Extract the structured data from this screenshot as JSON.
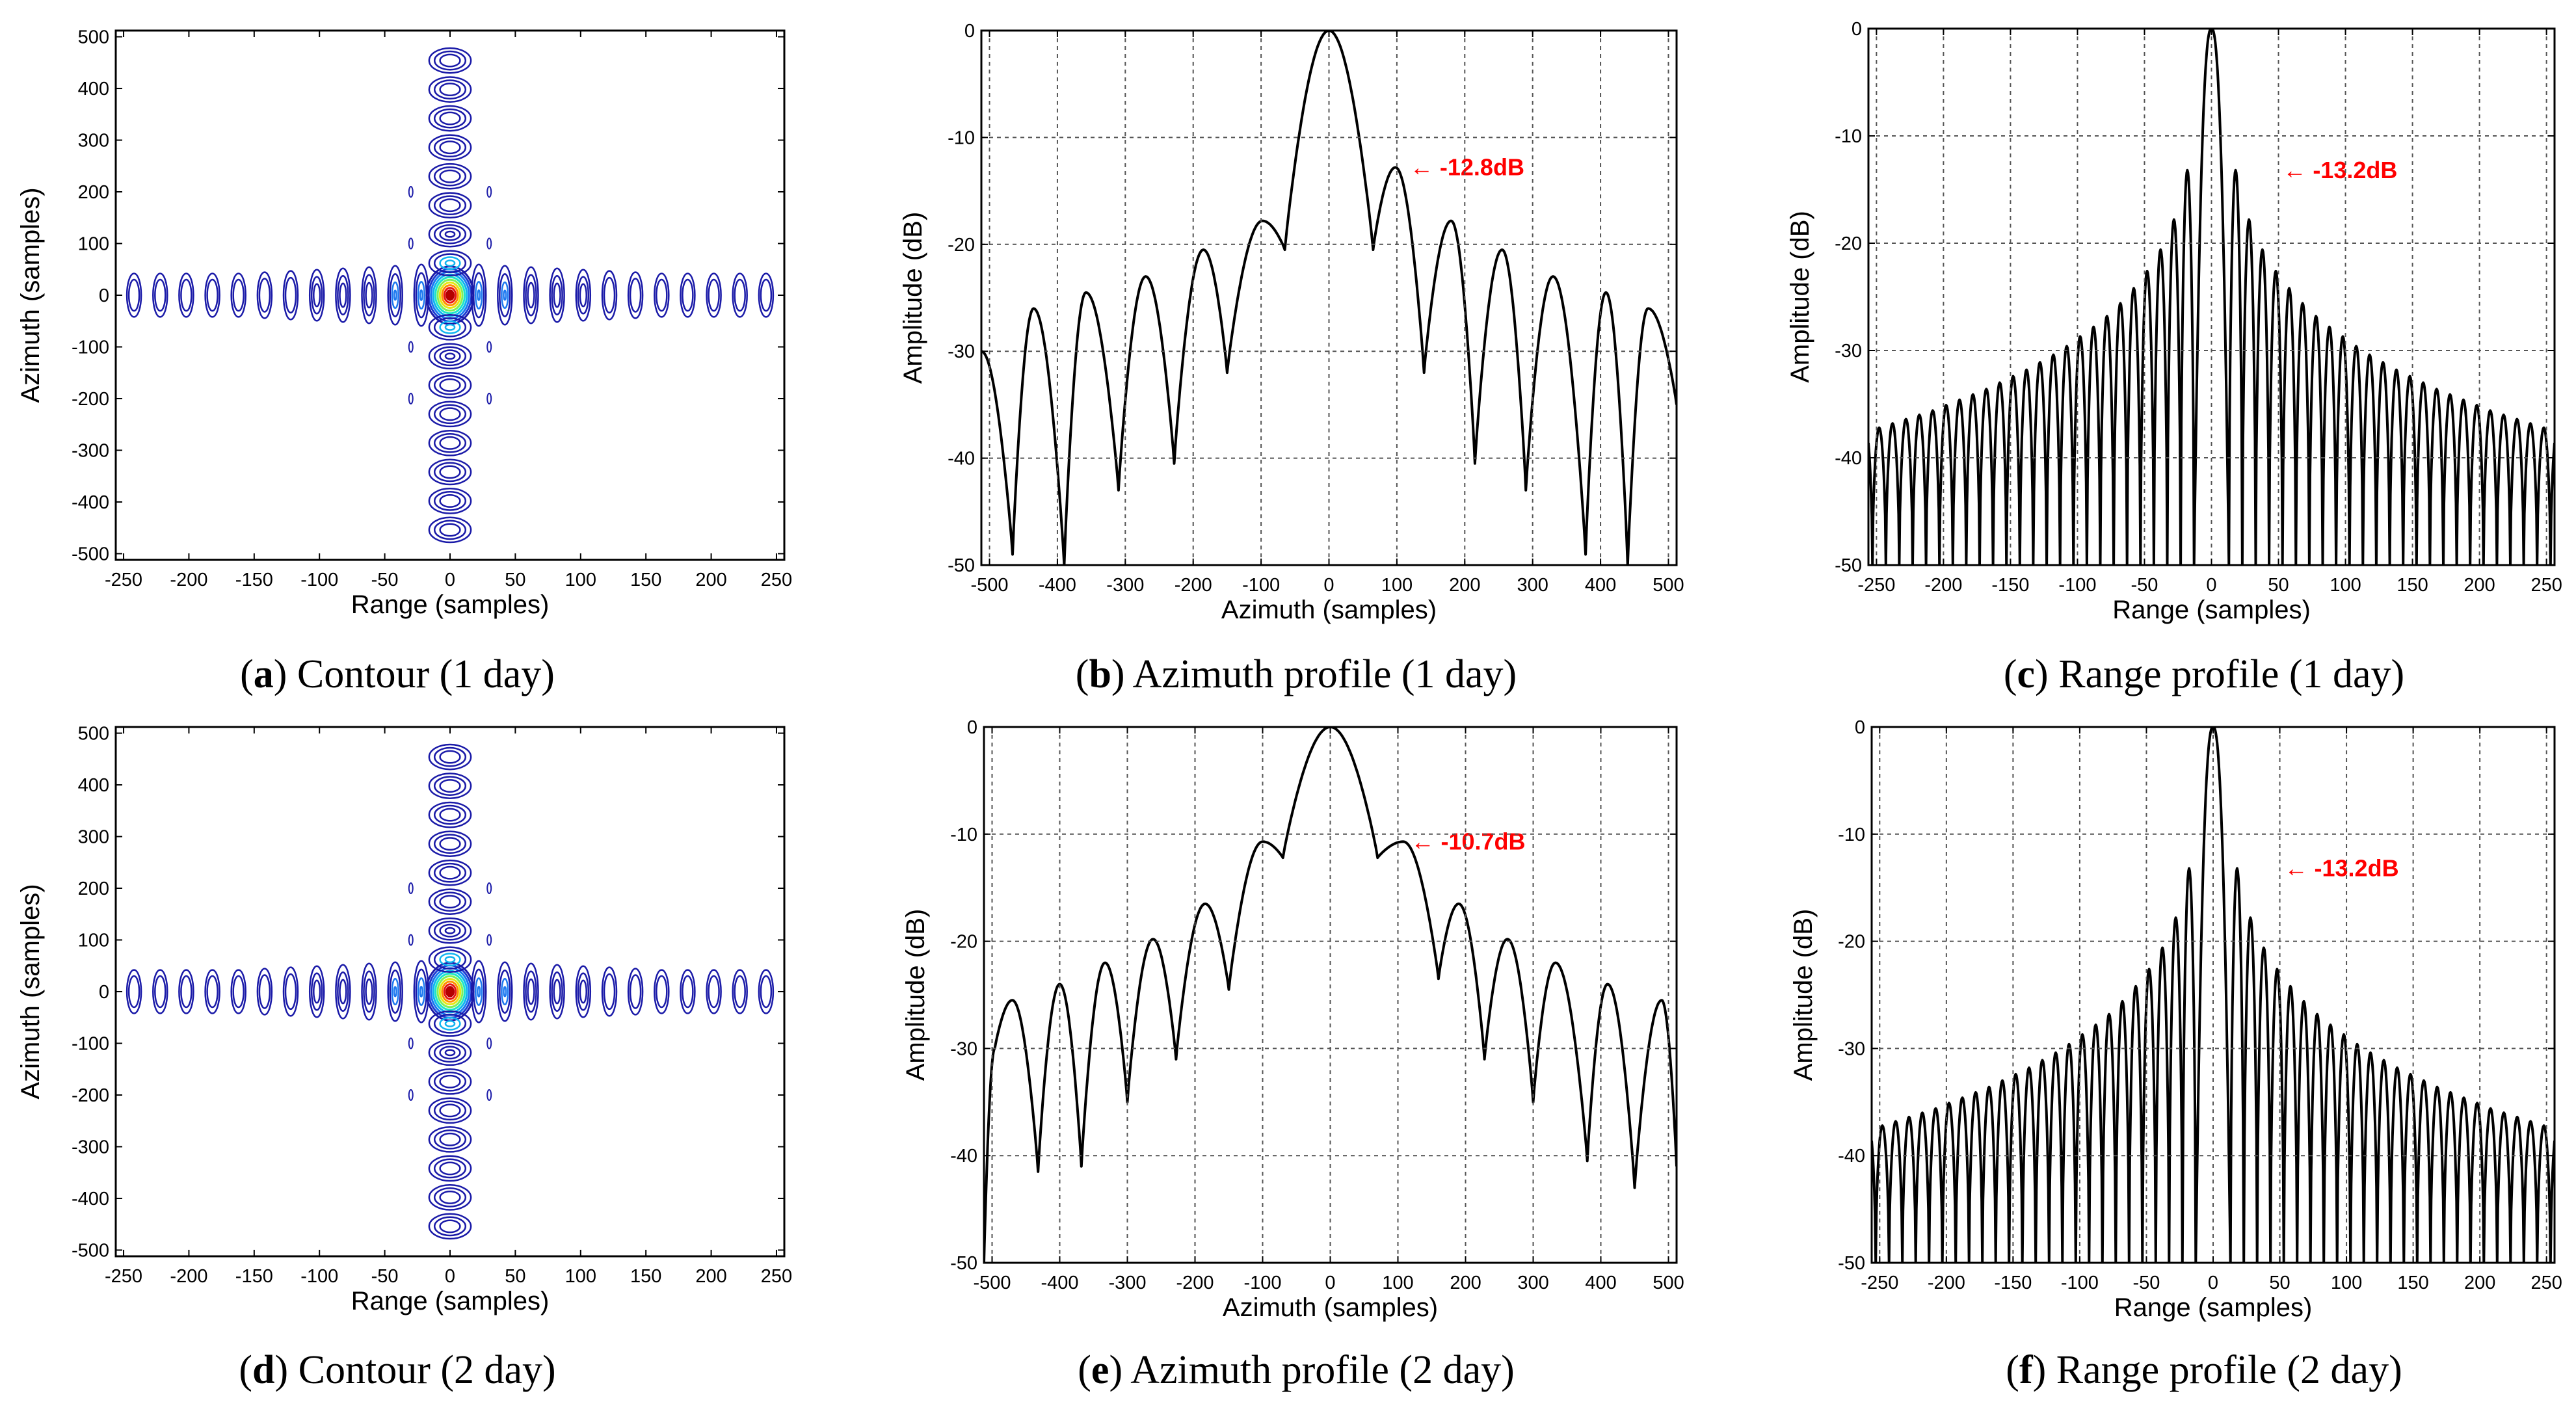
{
  "colors": {
    "profile_line": "#000000",
    "grid": "#555555",
    "contour_outer": "#1a1aa8",
    "contour_levels": [
      "#1a1aa8",
      "#1e3cd2",
      "#1c78f0",
      "#10b4f0",
      "#1ee6c8",
      "#7ef05a",
      "#e6e614",
      "#ff8c00",
      "#e61414",
      "#b40000"
    ],
    "annotation": "#ff0000"
  },
  "chart_data": [
    {
      "id": "a",
      "type": "contour",
      "caption_letter": "a",
      "caption_text": " Contour (1 day)",
      "xlabel": "Range (samples)",
      "ylabel": "Azimuth  (samples)",
      "xlim": [
        -256,
        256
      ],
      "ylim": [
        -512,
        512
      ],
      "xticks": [
        -250,
        -200,
        -150,
        -100,
        -50,
        0,
        50,
        100,
        150,
        200,
        250
      ],
      "yticks": [
        500,
        400,
        300,
        200,
        100,
        0,
        -100,
        -200,
        -300,
        -400,
        -500
      ],
      "grid": false,
      "center": [
        0,
        0
      ],
      "range_sidelobe_spacing": 20,
      "azimuth_sidelobe_spacing": 56
    },
    {
      "id": "b",
      "type": "line",
      "caption_letter": "b",
      "caption_text": " Azimuth profile (1 day)",
      "xlabel": "Azimuth (samples)",
      "ylabel": "Amplitude (dB)",
      "xlim": [
        -512,
        512
      ],
      "ylim": [
        -50,
        0
      ],
      "xticks": [
        -500,
        -400,
        -300,
        -200,
        -100,
        0,
        100,
        200,
        300,
        400,
        500
      ],
      "yticks": [
        0,
        -10,
        -20,
        -30,
        -40,
        -50
      ],
      "grid": true,
      "annotation": {
        "text": "← -12.8dB",
        "x": 100,
        "y": -12.8
      },
      "lobes": [
        {
          "x": -512,
          "y": -30
        },
        {
          "x": -466,
          "y": -49
        },
        {
          "x": -435,
          "y": -26
        },
        {
          "x": -390,
          "y": -50
        },
        {
          "x": -358,
          "y": -24.5
        },
        {
          "x": -310,
          "y": -43
        },
        {
          "x": -270,
          "y": -23
        },
        {
          "x": -228,
          "y": -40.5
        },
        {
          "x": -185,
          "y": -20.5
        },
        {
          "x": -150,
          "y": -32
        },
        {
          "x": -98,
          "y": -17.8
        },
        {
          "x": -65,
          "y": -20.5
        },
        {
          "x": 0,
          "y": 0
        },
        {
          "x": 65,
          "y": -20.5
        },
        {
          "x": 98,
          "y": -12.8
        },
        {
          "x": 140,
          "y": -32
        },
        {
          "x": 180,
          "y": -17.8
        },
        {
          "x": 215,
          "y": -40.5
        },
        {
          "x": 255,
          "y": -20.5
        },
        {
          "x": 290,
          "y": -43
        },
        {
          "x": 330,
          "y": -23
        },
        {
          "x": 378,
          "y": -49
        },
        {
          "x": 408,
          "y": -24.5
        },
        {
          "x": 440,
          "y": -50
        },
        {
          "x": 470,
          "y": -26
        },
        {
          "x": 512,
          "y": -35
        }
      ]
    },
    {
      "id": "c",
      "type": "line",
      "caption_letter": "c",
      "caption_text": " Range profile (1 day)",
      "xlabel": "Range (samples)",
      "ylabel": "Amplitude (dB)",
      "xlim": [
        -256,
        256
      ],
      "ylim": [
        -50,
        0
      ],
      "xticks": [
        -250,
        -200,
        -150,
        -100,
        -50,
        0,
        50,
        100,
        150,
        200,
        250
      ],
      "yticks": [
        0,
        -10,
        -20,
        -30,
        -40,
        -50
      ],
      "grid": true,
      "annotation": {
        "text": "← -13.2dB",
        "x": 30,
        "y": -13.2
      },
      "mainlobe_null": 13,
      "sidelobe_spacing": 10,
      "sidelobe_peaks": [
        -13.2,
        -17.8,
        -20.6,
        -22.6,
        -24.2,
        -25.6,
        -26.8,
        -27.8,
        -28.7,
        -29.6,
        -30.4,
        -31.1,
        -31.8,
        -32.4,
        -33.0,
        -33.6,
        -34.1,
        -34.6,
        -35.1,
        -35.6,
        -36.0,
        -36.4,
        -36.8,
        -37.2
      ],
      "null_depth": -50
    },
    {
      "id": "d",
      "type": "contour",
      "caption_letter": "d",
      "caption_text": " Contour (2 day)",
      "xlabel": "Range (samples)",
      "ylabel": "Azimuth  (samples)",
      "xlim": [
        -256,
        256
      ],
      "ylim": [
        -512,
        512
      ],
      "xticks": [
        -250,
        -200,
        -150,
        -100,
        -50,
        0,
        50,
        100,
        150,
        200,
        250
      ],
      "yticks": [
        500,
        400,
        300,
        200,
        100,
        0,
        -100,
        -200,
        -300,
        -400,
        -500
      ],
      "grid": false,
      "center": [
        0,
        0
      ],
      "range_sidelobe_spacing": 20,
      "azimuth_sidelobe_spacing": 56
    },
    {
      "id": "e",
      "type": "line",
      "caption_letter": "e",
      "caption_text": " Azimuth profile (2 day)",
      "xlabel": "Azimuth (samples)",
      "ylabel": "Amplitude (dB)",
      "xlim": [
        -512,
        512
      ],
      "ylim": [
        -50,
        0
      ],
      "xticks": [
        -500,
        -400,
        -300,
        -200,
        -100,
        0,
        100,
        200,
        300,
        400,
        500
      ],
      "yticks": [
        0,
        -10,
        -20,
        -30,
        -40,
        -50
      ],
      "grid": true,
      "annotation": {
        "text": "← -10.7dB",
        "x": 100,
        "y": -10.7
      },
      "lobes": [
        {
          "x": -512,
          "y": -50
        },
        {
          "x": -496,
          "y": -30
        },
        {
          "x": -470,
          "y": -25.5
        },
        {
          "x": -432,
          "y": -41.5
        },
        {
          "x": -400,
          "y": -24
        },
        {
          "x": -368,
          "y": -41
        },
        {
          "x": -333,
          "y": -22
        },
        {
          "x": -300,
          "y": -35
        },
        {
          "x": -262,
          "y": -19.8
        },
        {
          "x": -228,
          "y": -31
        },
        {
          "x": -185,
          "y": -16.5
        },
        {
          "x": -150,
          "y": -24.5
        },
        {
          "x": -100,
          "y": -10.7
        },
        {
          "x": -70,
          "y": -12.2
        },
        {
          "x": 0,
          "y": 0
        },
        {
          "x": 70,
          "y": -12.2
        },
        {
          "x": 108,
          "y": -10.7
        },
        {
          "x": 160,
          "y": -23.5
        },
        {
          "x": 190,
          "y": -16.5
        },
        {
          "x": 228,
          "y": -31
        },
        {
          "x": 262,
          "y": -19.8
        },
        {
          "x": 300,
          "y": -35
        },
        {
          "x": 333,
          "y": -22
        },
        {
          "x": 380,
          "y": -40.5
        },
        {
          "x": 410,
          "y": -24
        },
        {
          "x": 450,
          "y": -43
        },
        {
          "x": 490,
          "y": -25.5
        },
        {
          "x": 512,
          "y": -41
        }
      ]
    },
    {
      "id": "f",
      "type": "line",
      "caption_letter": "f",
      "caption_text": " Range profile (2 day)",
      "xlabel": "Range (samples)",
      "ylabel": "Amplitude (dB)",
      "xlim": [
        -256,
        256
      ],
      "ylim": [
        -50,
        0
      ],
      "xticks": [
        -250,
        -200,
        -150,
        -100,
        -50,
        0,
        50,
        100,
        150,
        200,
        250
      ],
      "yticks": [
        0,
        -10,
        -20,
        -30,
        -40,
        -50
      ],
      "grid": true,
      "annotation": {
        "text": "← -13.2dB",
        "x": 30,
        "y": -13.2
      },
      "mainlobe_null": 13,
      "sidelobe_spacing": 10,
      "sidelobe_peaks": [
        -13.2,
        -17.8,
        -20.6,
        -22.6,
        -24.2,
        -25.6,
        -26.8,
        -27.8,
        -28.7,
        -29.6,
        -30.4,
        -31.1,
        -31.8,
        -32.4,
        -33.0,
        -33.6,
        -34.1,
        -34.6,
        -35.1,
        -35.6,
        -36.0,
        -36.4,
        -36.8,
        -37.2
      ],
      "null_depth": -50
    }
  ]
}
